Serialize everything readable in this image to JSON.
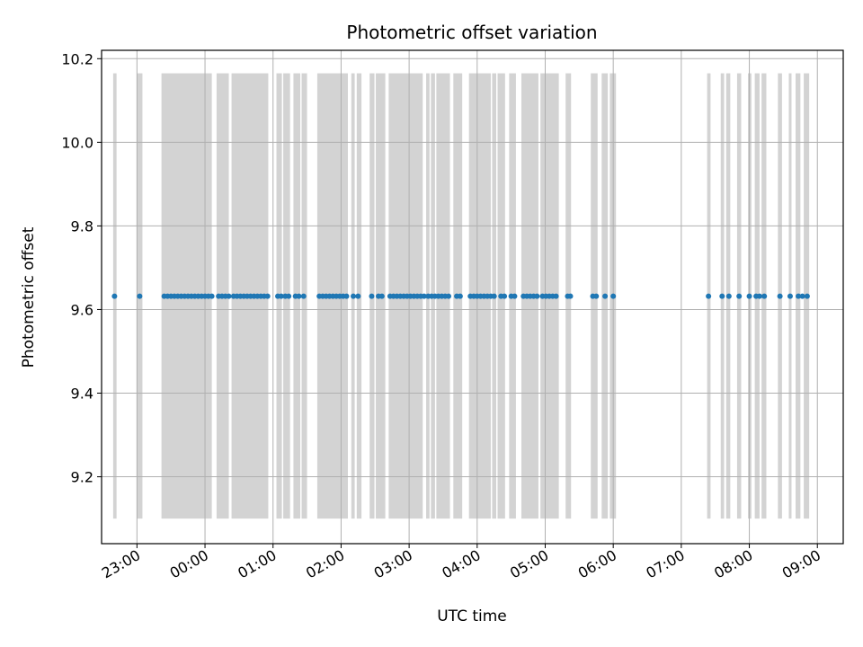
{
  "chart_data": {
    "type": "scatter",
    "title": "Photometric offset variation",
    "xlabel": "UTC time",
    "ylabel": "Photometric offset",
    "x_unit": "UTC hour of day (values >= 24 are the following day)",
    "xlim": [
      22.48,
      33.38
    ],
    "ylim": [
      9.04,
      10.22
    ],
    "grid": true,
    "x_ticks": [
      {
        "value": 23,
        "label": "23:00"
      },
      {
        "value": 24,
        "label": "00:00"
      },
      {
        "value": 25,
        "label": "01:00"
      },
      {
        "value": 26,
        "label": "02:00"
      },
      {
        "value": 27,
        "label": "03:00"
      },
      {
        "value": 28,
        "label": "04:00"
      },
      {
        "value": 29,
        "label": "05:00"
      },
      {
        "value": 30,
        "label": "06:00"
      },
      {
        "value": 31,
        "label": "07:00"
      },
      {
        "value": 32,
        "label": "08:00"
      },
      {
        "value": 33,
        "label": "09:00"
      }
    ],
    "y_ticks": [
      {
        "value": 9.2,
        "label": "9.2"
      },
      {
        "value": 9.4,
        "label": "9.4"
      },
      {
        "value": 9.6,
        "label": "9.6"
      },
      {
        "value": 9.8,
        "label": "9.8"
      },
      {
        "value": 10.0,
        "label": "10.0"
      },
      {
        "value": 10.2,
        "label": "10.2"
      }
    ],
    "band_range": [
      9.1,
      10.165
    ],
    "bands": [
      [
        22.65,
        22.7
      ],
      [
        23.0,
        23.08
      ],
      [
        23.36,
        24.1
      ],
      [
        24.17,
        24.35
      ],
      [
        24.39,
        24.93
      ],
      [
        25.05,
        25.13
      ],
      [
        25.15,
        25.25
      ],
      [
        25.3,
        25.4
      ],
      [
        25.42,
        25.5
      ],
      [
        25.65,
        26.1
      ],
      [
        26.15,
        26.2
      ],
      [
        26.23,
        26.3
      ],
      [
        26.42,
        26.49
      ],
      [
        26.51,
        26.65
      ],
      [
        26.7,
        27.2
      ],
      [
        27.25,
        27.3
      ],
      [
        27.32,
        27.38
      ],
      [
        27.4,
        27.6
      ],
      [
        27.65,
        27.78
      ],
      [
        27.88,
        28.2
      ],
      [
        28.22,
        28.28
      ],
      [
        28.3,
        28.41
      ],
      [
        28.47,
        28.57
      ],
      [
        28.65,
        28.9
      ],
      [
        28.93,
        29.2
      ],
      [
        29.3,
        29.38
      ],
      [
        29.67,
        29.77
      ],
      [
        29.83,
        29.92
      ],
      [
        29.95,
        30.04
      ],
      [
        31.38,
        31.43
      ],
      [
        31.58,
        31.63
      ],
      [
        31.66,
        31.72
      ],
      [
        31.82,
        31.88
      ],
      [
        31.98,
        32.03
      ],
      [
        32.08,
        32.15
      ],
      [
        32.18,
        32.25
      ],
      [
        32.42,
        32.48
      ],
      [
        32.58,
        32.62
      ],
      [
        32.68,
        32.75
      ],
      [
        32.8,
        32.88
      ]
    ],
    "series": [
      {
        "color": "#1f77b4",
        "y_value": 9.632,
        "x": [
          22.67,
          23.04,
          23.4,
          23.45,
          23.5,
          23.55,
          23.6,
          23.65,
          23.7,
          23.75,
          23.8,
          23.85,
          23.9,
          23.95,
          24.0,
          24.05,
          24.1,
          24.2,
          24.25,
          24.3,
          24.35,
          24.42,
          24.47,
          24.52,
          24.57,
          24.62,
          24.67,
          24.72,
          24.77,
          24.82,
          24.87,
          24.92,
          25.07,
          25.12,
          25.18,
          25.23,
          25.33,
          25.38,
          25.45,
          25.68,
          25.73,
          25.78,
          25.83,
          25.88,
          25.93,
          25.98,
          26.03,
          26.08,
          26.18,
          26.25,
          26.45,
          26.55,
          26.6,
          26.72,
          26.77,
          26.82,
          26.87,
          26.92,
          26.97,
          27.02,
          27.07,
          27.12,
          27.17,
          27.22,
          27.28,
          27.33,
          27.38,
          27.43,
          27.48,
          27.53,
          27.58,
          27.7,
          27.75,
          27.9,
          27.95,
          28.0,
          28.05,
          28.1,
          28.15,
          28.2,
          28.25,
          28.35,
          28.4,
          28.5,
          28.55,
          28.68,
          28.73,
          28.78,
          28.83,
          28.88,
          28.96,
          29.01,
          29.06,
          29.11,
          29.16,
          29.33,
          29.37,
          29.7,
          29.75,
          29.88,
          30.0,
          31.4,
          31.6,
          31.7,
          31.85,
          32.0,
          32.1,
          32.15,
          32.22,
          32.45,
          32.6,
          32.72,
          32.78,
          32.85
        ]
      }
    ]
  }
}
